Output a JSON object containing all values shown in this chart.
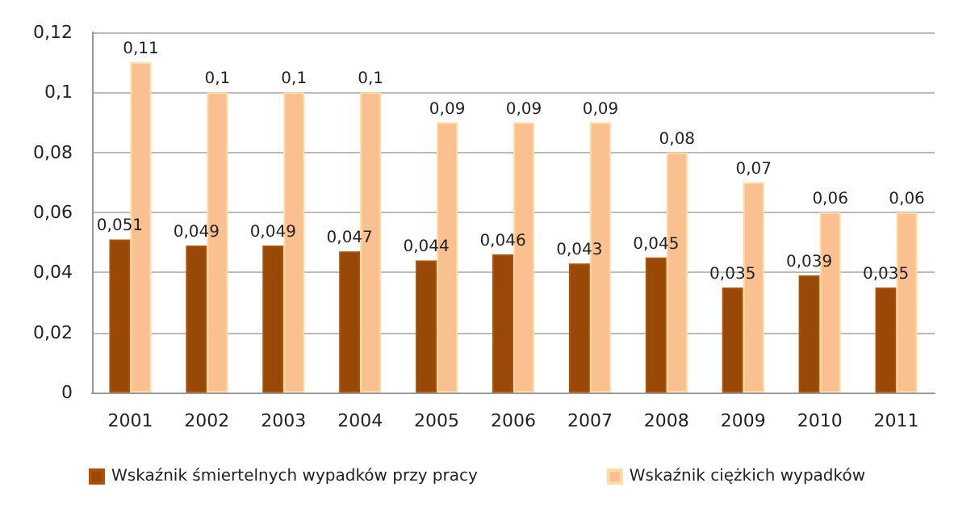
{
  "chart_data": {
    "type": "bar",
    "categories": [
      "2001",
      "2002",
      "2003",
      "2004",
      "2005",
      "2006",
      "2007",
      "2008",
      "2009",
      "2010",
      "2011"
    ],
    "series": [
      {
        "name": "Wskaźnik śmiertelnych wypadków przy pracy",
        "color": "#984807",
        "values": [
          0.051,
          0.049,
          0.049,
          0.047,
          0.044,
          0.046,
          0.043,
          0.045,
          0.035,
          0.039,
          0.035
        ],
        "value_labels": [
          "0,051",
          "0,049",
          "0,049",
          "0,047",
          "0,044",
          "0,046",
          "0,043",
          "0,045",
          "0,035",
          "0,039",
          "0,035"
        ]
      },
      {
        "name": "Wskaźnik ciężkich wypadków",
        "color": "#fac090",
        "values": [
          0.11,
          0.1,
          0.1,
          0.1,
          0.09,
          0.09,
          0.09,
          0.08,
          0.07,
          0.06,
          0.06
        ],
        "value_labels": [
          "0,11",
          "0,1",
          "0,1",
          "0,1",
          "0,09",
          "0,09",
          "0,09",
          "0,08",
          "0,07",
          "0,06",
          "0,06"
        ]
      }
    ],
    "ylim": [
      0,
      0.12
    ],
    "yticks": [
      {
        "value": 0,
        "label": "0"
      },
      {
        "value": 0.02,
        "label": "0,02"
      },
      {
        "value": 0.04,
        "label": "0,04"
      },
      {
        "value": 0.06,
        "label": "0,06"
      },
      {
        "value": 0.08,
        "label": "0,08"
      },
      {
        "value": 0.1,
        "label": "0,1"
      },
      {
        "value": 0.12,
        "label": "0,12"
      }
    ],
    "grid": "y",
    "legend": "bottom"
  }
}
